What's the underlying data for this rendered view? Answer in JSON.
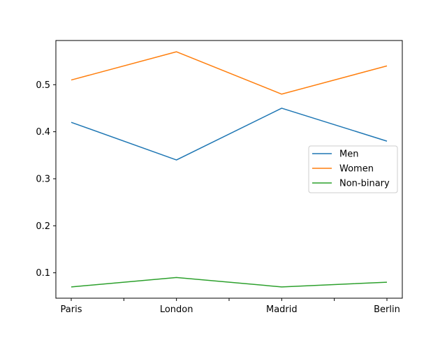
{
  "chart_data": {
    "type": "line",
    "title": "",
    "xlabel": "",
    "ylabel": "",
    "categories": [
      "Paris",
      "London",
      "Madrid",
      "Berlin"
    ],
    "y_ticks": [
      0.1,
      0.2,
      0.3,
      0.4,
      0.5
    ],
    "y_tick_labels": [
      "0.1",
      "0.2",
      "0.3",
      "0.4",
      "0.5"
    ],
    "ylim": [
      0.046,
      0.594
    ],
    "grid": false,
    "legend_position": "center-right",
    "series": [
      {
        "name": "Men",
        "color": "#1f77b4",
        "values": [
          0.42,
          0.34,
          0.45,
          0.38
        ]
      },
      {
        "name": "Women",
        "color": "#ff7f0e",
        "values": [
          0.51,
          0.57,
          0.48,
          0.54
        ]
      },
      {
        "name": "Non-binary",
        "color": "#2ca02c",
        "values": [
          0.07,
          0.09,
          0.07,
          0.08
        ]
      }
    ]
  }
}
